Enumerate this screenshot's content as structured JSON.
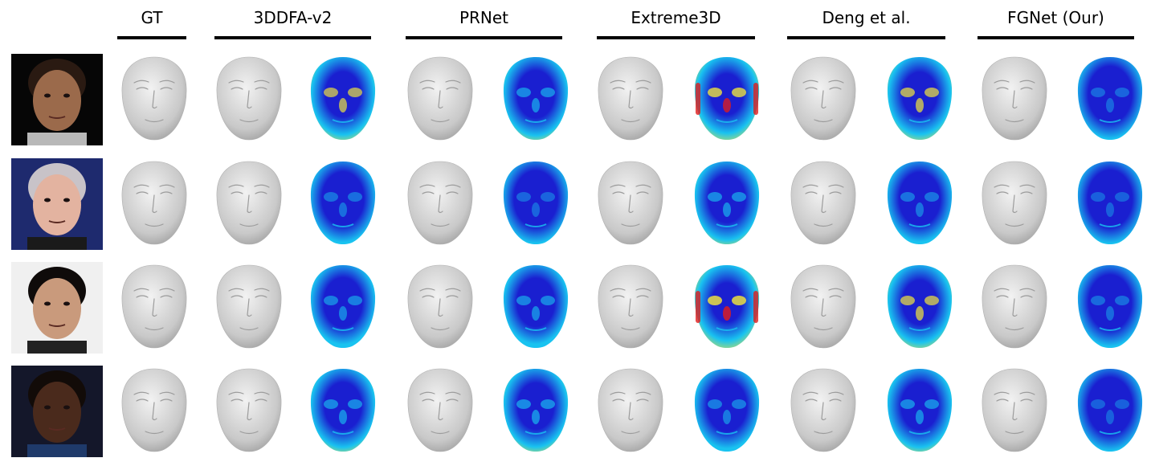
{
  "figure": {
    "columns": [
      {
        "label": "GT"
      },
      {
        "label": "3DDFA-v2"
      },
      {
        "label": "PRNet"
      },
      {
        "label": "Extreme3D"
      },
      {
        "label": "Deng et al."
      },
      {
        "label": "FGNet (Our)"
      }
    ],
    "rows": [
      {
        "photo": {
          "bg": "#060606",
          "skin": "#9b6a4b",
          "hair": "#2a1a12",
          "collar": "#b8b8b8"
        }
      },
      {
        "photo": {
          "bg": "#1e2a6e",
          "skin": "#e3b3a0",
          "hair": "#c8c3c8",
          "collar": "#1a1a1a"
        }
      },
      {
        "photo": {
          "bg": "#f0f0f0",
          "skin": "#c99a7c",
          "hair": "#0f0b0a",
          "collar": "#222222"
        }
      },
      {
        "photo": {
          "bg": "#14172a",
          "skin": "#4a2a1c",
          "hair": "#120b08",
          "collar": "#1f3a6a"
        }
      }
    ],
    "colors": {
      "mesh_light": "#f2f2f2",
      "mesh_mid": "#c9c9c9",
      "mesh_dark": "#9a9a9a",
      "error_low": "#1a1fd0",
      "error_mid": "#19c3f0",
      "error_high": "#f2e63a",
      "error_max": "#e01c1c"
    }
  }
}
